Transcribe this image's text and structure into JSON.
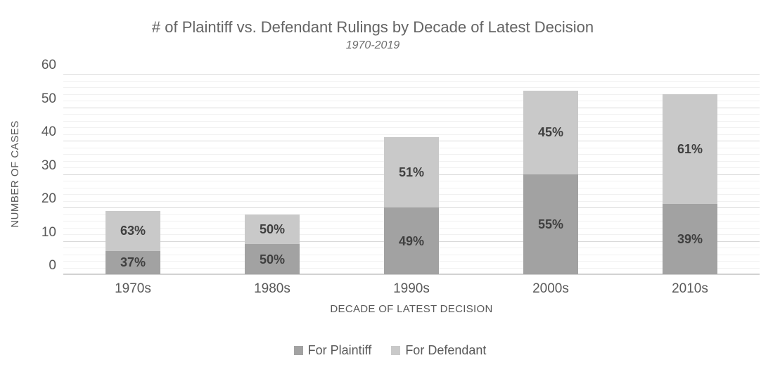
{
  "chart_data": {
    "type": "bar",
    "stacked": true,
    "title": "# of Plaintiff vs. Defendant Rulings by Decade of Latest Decision",
    "subtitle": "1970-2019",
    "xlabel": "DECADE OF LATEST DECISION",
    "ylabel": "NUMBER OF CASES",
    "categories": [
      "1970s",
      "1980s",
      "1990s",
      "2000s",
      "2010s"
    ],
    "series": [
      {
        "name": "For Plaintiff",
        "color": "#a2a2a2",
        "values": [
          7,
          9,
          20,
          30,
          21
        ],
        "labels": [
          "37%",
          "50%",
          "49%",
          "55%",
          "39%"
        ]
      },
      {
        "name": "For Defendant",
        "color": "#c9c9c9",
        "values": [
          12,
          9,
          21,
          25,
          33
        ],
        "labels": [
          "63%",
          "50%",
          "51%",
          "45%",
          "61%"
        ]
      }
    ],
    "totals": [
      19,
      18,
      41,
      55,
      54
    ],
    "ylim": [
      0,
      60
    ],
    "yticks": [
      0,
      10,
      20,
      30,
      40,
      50,
      60
    ],
    "minor_grid_step": 2,
    "grid": true,
    "legend_position": "bottom",
    "label_color": "#3f3f3f",
    "axis_text_color": "#595959",
    "major_grid_color": "#d9d9d9",
    "minor_grid_color": "#f1f1f1"
  }
}
